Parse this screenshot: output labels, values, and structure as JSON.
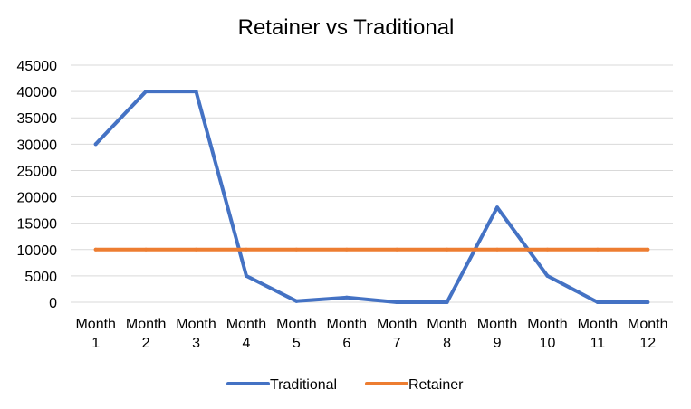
{
  "chart_data": {
    "type": "line",
    "title": "Retainer vs Traditional",
    "categories": [
      [
        "Month",
        "1"
      ],
      [
        "Month",
        "2"
      ],
      [
        "Month",
        "3"
      ],
      [
        "Month",
        "4"
      ],
      [
        "Month",
        "5"
      ],
      [
        "Month",
        "6"
      ],
      [
        "Month",
        "7"
      ],
      [
        "Month",
        "8"
      ],
      [
        "Month",
        "9"
      ],
      [
        "Month",
        "10"
      ],
      [
        "Month",
        "11"
      ],
      [
        "Month",
        "12"
      ]
    ],
    "y_ticks": [
      "0",
      "5000",
      "10000",
      "15000",
      "20000",
      "25000",
      "30000",
      "35000",
      "40000",
      "45000"
    ],
    "ylim": [
      0,
      45000
    ],
    "grid": true,
    "legend_position": "bottom",
    "series": [
      {
        "name": "Traditional",
        "color": "#4472c4",
        "values": [
          30000,
          40000,
          40000,
          5000,
          200,
          900,
          0,
          0,
          18000,
          5000,
          0,
          0
        ]
      },
      {
        "name": "Retainer",
        "color": "#ed7d31",
        "values": [
          10000,
          10000,
          10000,
          10000,
          10000,
          10000,
          10000,
          10000,
          10000,
          10000,
          10000,
          10000
        ]
      }
    ]
  }
}
